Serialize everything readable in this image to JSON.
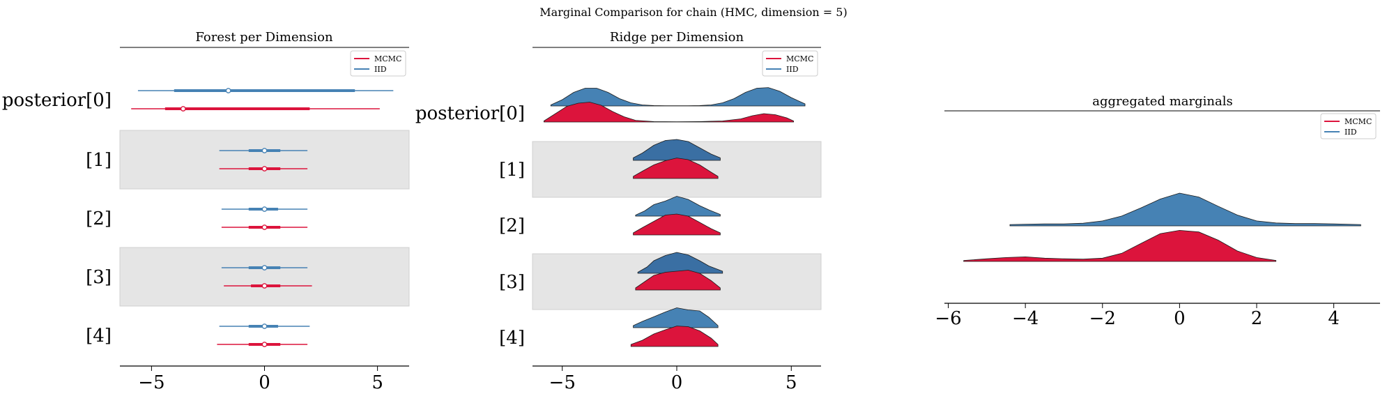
{
  "figure": {
    "title": "Marginal Comparison for chain (HMC, dimension = 5)"
  },
  "colors": {
    "mcmc": "#dc143c",
    "iid": "#4682b4",
    "iid_dark": "#3a6fa3",
    "band": "#e5e5e5"
  },
  "chart_data": [
    {
      "type": "forest",
      "title": "Forest per Dimension",
      "rows": [
        "posterior[0]",
        "[1]",
        "[2]",
        "[3]",
        "[4]"
      ],
      "xticks": [
        -5,
        0,
        5
      ],
      "xlim": [
        -6.4,
        6.4
      ],
      "legend": {
        "entries": [
          "MCMC",
          "IID"
        ],
        "placement": "upper right"
      },
      "series": [
        {
          "name": "IID",
          "color": "iid",
          "intervals": [
            {
              "point": -1.6,
              "hdi_low": -5.6,
              "hdi_high": 5.7,
              "iqr_low": -4.0,
              "iqr_high": 4.0
            },
            {
              "point": 0.0,
              "hdi_low": -2.0,
              "hdi_high": 1.9,
              "iqr_low": -0.7,
              "iqr_high": 0.7
            },
            {
              "point": 0.0,
              "hdi_low": -1.9,
              "hdi_high": 1.9,
              "iqr_low": -0.7,
              "iqr_high": 0.6
            },
            {
              "point": 0.0,
              "hdi_low": -1.9,
              "hdi_high": 1.9,
              "iqr_low": -0.7,
              "iqr_high": 0.7
            },
            {
              "point": 0.0,
              "hdi_low": -2.0,
              "hdi_high": 2.0,
              "iqr_low": -0.7,
              "iqr_high": 0.6
            }
          ]
        },
        {
          "name": "MCMC",
          "color": "mcmc",
          "intervals": [
            {
              "point": -3.6,
              "hdi_low": -5.9,
              "hdi_high": 5.1,
              "iqr_low": -4.4,
              "iqr_high": 2.0
            },
            {
              "point": 0.0,
              "hdi_low": -2.0,
              "hdi_high": 1.9,
              "iqr_low": -0.7,
              "iqr_high": 0.7
            },
            {
              "point": 0.0,
              "hdi_low": -1.9,
              "hdi_high": 1.9,
              "iqr_low": -0.7,
              "iqr_high": 0.7
            },
            {
              "point": 0.0,
              "hdi_low": -1.8,
              "hdi_high": 2.1,
              "iqr_low": -0.6,
              "iqr_high": 0.7
            },
            {
              "point": 0.0,
              "hdi_low": -2.1,
              "hdi_high": 1.9,
              "iqr_low": -0.7,
              "iqr_high": 0.7
            }
          ]
        }
      ]
    },
    {
      "type": "ridge",
      "title": "Ridge per Dimension",
      "rows": [
        "posterior[0]",
        "[1]",
        "[2]",
        "[3]",
        "[4]"
      ],
      "xticks": [
        -5,
        0,
        5
      ],
      "xlim": [
        -6.3,
        6.3
      ],
      "legend": {
        "entries": [
          "MCMC",
          "IID"
        ],
        "placement": "upper right"
      },
      "series": [
        {
          "name": "IID",
          "color": "iid",
          "densities": [
            {
              "x": [
                -5.5,
                -5.0,
                -4.5,
                -4.0,
                -3.5,
                -3.0,
                -2.5,
                -2.0,
                -1.5,
                -1.0,
                -0.5,
                0.0,
                0.5,
                1.0,
                1.5,
                2.0,
                2.5,
                3.0,
                3.5,
                4.0,
                4.5,
                5.0,
                5.6
              ],
              "y": [
                0.05,
                0.3,
                0.65,
                0.85,
                0.85,
                0.65,
                0.35,
                0.15,
                0.05,
                0.02,
                0.01,
                0.01,
                0.01,
                0.02,
                0.05,
                0.15,
                0.35,
                0.65,
                0.85,
                0.88,
                0.7,
                0.4,
                0.1
              ]
            },
            {
              "x": [
                -1.9,
                -1.5,
                -1.0,
                -0.5,
                0.0,
                0.5,
                1.0,
                1.5,
                1.9
              ],
              "y": [
                0.12,
                0.35,
                0.72,
                0.95,
                1.0,
                0.9,
                0.6,
                0.3,
                0.12
              ]
            },
            {
              "x": [
                -1.8,
                -1.4,
                -1.0,
                -0.5,
                0.0,
                0.5,
                1.0,
                1.4,
                1.9
              ],
              "y": [
                0.05,
                0.25,
                0.55,
                0.72,
                0.95,
                0.8,
                0.5,
                0.3,
                0.08
              ]
            },
            {
              "x": [
                -1.7,
                -1.3,
                -1.0,
                -0.5,
                0.0,
                0.5,
                1.0,
                1.4,
                2.0
              ],
              "y": [
                0.05,
                0.3,
                0.6,
                0.85,
                1.0,
                0.88,
                0.6,
                0.35,
                0.1
              ]
            },
            {
              "x": [
                -1.9,
                -1.5,
                -1.0,
                -0.5,
                0.0,
                0.5,
                1.0,
                1.4,
                1.8
              ],
              "y": [
                0.1,
                0.3,
                0.52,
                0.75,
                0.95,
                0.85,
                0.8,
                0.5,
                0.1
              ]
            }
          ]
        },
        {
          "name": "MCMC",
          "color": "mcmc",
          "densities": [
            {
              "x": [
                -5.8,
                -5.3,
                -4.8,
                -4.3,
                -3.8,
                -3.3,
                -2.8,
                -2.3,
                -1.8,
                -1.0,
                0.0,
                1.0,
                2.0,
                2.8,
                3.3,
                3.8,
                4.3,
                4.8,
                5.1
              ],
              "y": [
                0.05,
                0.4,
                0.75,
                0.9,
                0.95,
                0.8,
                0.5,
                0.25,
                0.08,
                0.02,
                0.01,
                0.02,
                0.05,
                0.15,
                0.3,
                0.4,
                0.35,
                0.2,
                0.05
              ]
            },
            {
              "x": [
                -1.9,
                -1.5,
                -1.0,
                -0.5,
                0.0,
                0.5,
                1.0,
                1.5,
                1.8
              ],
              "y": [
                0.1,
                0.35,
                0.65,
                0.85,
                0.98,
                0.9,
                0.65,
                0.3,
                0.1
              ]
            },
            {
              "x": [
                -1.9,
                -1.5,
                -1.0,
                -0.5,
                0.0,
                0.5,
                1.0,
                1.5,
                1.9
              ],
              "y": [
                0.1,
                0.35,
                0.65,
                0.95,
                1.0,
                0.9,
                0.6,
                0.3,
                0.1
              ]
            },
            {
              "x": [
                -1.8,
                -1.4,
                -1.0,
                -0.5,
                0.0,
                0.5,
                1.0,
                1.5,
                1.9
              ],
              "y": [
                0.1,
                0.4,
                0.7,
                0.85,
                0.9,
                0.95,
                0.8,
                0.45,
                0.1
              ]
            },
            {
              "x": [
                -2.0,
                -1.5,
                -1.0,
                -0.5,
                0.0,
                0.5,
                1.0,
                1.5,
                1.8
              ],
              "y": [
                0.1,
                0.3,
                0.6,
                0.8,
                0.98,
                0.95,
                0.75,
                0.4,
                0.1
              ]
            }
          ]
        }
      ]
    },
    {
      "type": "ridge",
      "title": "aggregated marginals",
      "xticks": [
        -6,
        -4,
        -2,
        0,
        2,
        4
      ],
      "xlim": [
        -6.1,
        5.2
      ],
      "legend": {
        "entries": [
          "MCMC",
          "IID"
        ],
        "placement": "upper right"
      },
      "series": [
        {
          "name": "IID",
          "color": "iid",
          "x": [
            -4.4,
            -4.0,
            -3.5,
            -3.0,
            -2.5,
            -2.0,
            -1.5,
            -1.0,
            -0.5,
            0.0,
            0.5,
            1.0,
            1.5,
            2.0,
            2.5,
            3.0,
            3.5,
            4.0,
            4.7
          ],
          "y": [
            0.04,
            0.05,
            0.06,
            0.06,
            0.08,
            0.15,
            0.3,
            0.55,
            0.82,
            1.0,
            0.88,
            0.6,
            0.33,
            0.15,
            0.09,
            0.07,
            0.07,
            0.06,
            0.04
          ]
        },
        {
          "name": "MCMC",
          "color": "mcmc",
          "x": [
            -5.6,
            -5.0,
            -4.5,
            -4.0,
            -3.5,
            -3.0,
            -2.5,
            -2.0,
            -1.5,
            -1.0,
            -0.5,
            0.0,
            0.5,
            1.0,
            1.5,
            2.0,
            2.5
          ],
          "y": [
            0.03,
            0.08,
            0.12,
            0.14,
            0.1,
            0.08,
            0.07,
            0.1,
            0.25,
            0.55,
            0.85,
            0.95,
            0.9,
            0.65,
            0.32,
            0.12,
            0.03
          ]
        }
      ]
    }
  ]
}
